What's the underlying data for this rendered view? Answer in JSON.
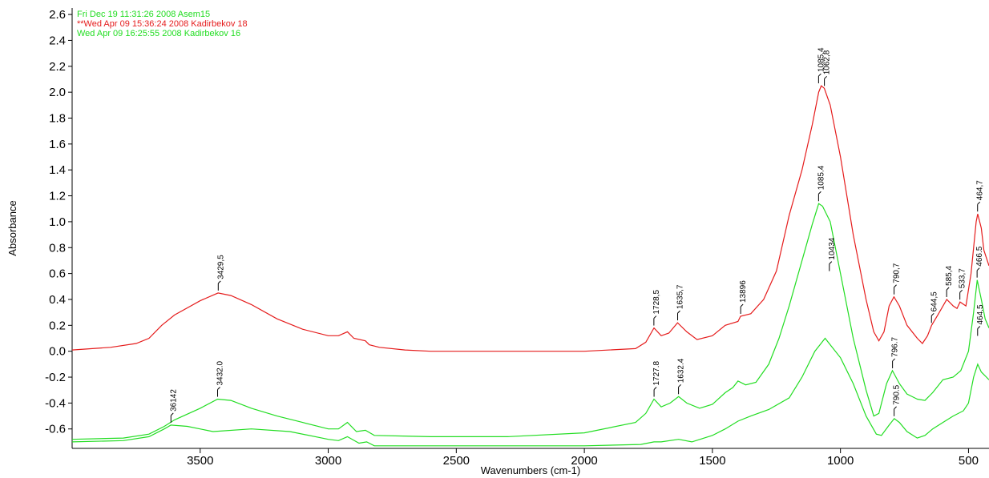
{
  "chart_data": {
    "type": "line",
    "xlabel": "Wavenumbers (cm-1)",
    "ylabel": "Absorbance",
    "xlim": [
      4000,
      420
    ],
    "x_reversed": true,
    "ylim": [
      -0.75,
      2.65
    ],
    "x_ticks": [
      3500,
      3000,
      2500,
      2000,
      1500,
      1000,
      500
    ],
    "x_tick_labels": [
      "3500",
      "3000",
      "2500",
      "2000",
      "1500",
      "1000",
      "500"
    ],
    "y_ticks": [
      2.6,
      2.4,
      2.2,
      2.0,
      1.8,
      1.6,
      1.4,
      1.2,
      1.0,
      0.8,
      0.6,
      0.4,
      0.2,
      0.0,
      -0.2,
      -0.4,
      -0.6
    ],
    "y_tick_labels": [
      "2.6",
      "2.4",
      "2.2",
      "2.0",
      "1.8",
      "1.6",
      "1.4",
      "1.2",
      "1.0",
      "0.8",
      "0.6",
      "0.4",
      "0.2",
      "0.0",
      "-0.2",
      "-0.4",
      "-0.6"
    ],
    "grid": false,
    "legend_position": "top-left",
    "series": [
      {
        "name": "Fri Dec 19 11:31:26 2008 Asem15",
        "color": "#22dd22",
        "points": [
          [
            4000,
            -0.7
          ],
          [
            3800,
            -0.69
          ],
          [
            3700,
            -0.66
          ],
          [
            3640,
            -0.6
          ],
          [
            3614,
            -0.57
          ],
          [
            3550,
            -0.58
          ],
          [
            3450,
            -0.62
          ],
          [
            3300,
            -0.6
          ],
          [
            3150,
            -0.62
          ],
          [
            3000,
            -0.68
          ],
          [
            2960,
            -0.69
          ],
          [
            2925,
            -0.66
          ],
          [
            2880,
            -0.71
          ],
          [
            2850,
            -0.7
          ],
          [
            2820,
            -0.73
          ],
          [
            2600,
            -0.73
          ],
          [
            2000,
            -0.73
          ],
          [
            1780,
            -0.72
          ],
          [
            1728,
            -0.7
          ],
          [
            1700,
            -0.7
          ],
          [
            1632,
            -0.68
          ],
          [
            1580,
            -0.7
          ],
          [
            1500,
            -0.65
          ],
          [
            1450,
            -0.6
          ],
          [
            1400,
            -0.54
          ],
          [
            1350,
            -0.5
          ],
          [
            1280,
            -0.45
          ],
          [
            1200,
            -0.36
          ],
          [
            1150,
            -0.2
          ],
          [
            1100,
            0.0
          ],
          [
            1080,
            0.05
          ],
          [
            1060,
            0.1
          ],
          [
            1040,
            0.05
          ],
          [
            1000,
            -0.05
          ],
          [
            950,
            -0.25
          ],
          [
            900,
            -0.5
          ],
          [
            860,
            -0.64
          ],
          [
            840,
            -0.65
          ],
          [
            810,
            -0.57
          ],
          [
            790,
            -0.52
          ],
          [
            770,
            -0.55
          ],
          [
            740,
            -0.62
          ],
          [
            700,
            -0.67
          ],
          [
            670,
            -0.65
          ],
          [
            640,
            -0.6
          ],
          [
            600,
            -0.55
          ],
          [
            560,
            -0.5
          ],
          [
            520,
            -0.46
          ],
          [
            500,
            -0.4
          ],
          [
            480,
            -0.2
          ],
          [
            464,
            -0.1
          ],
          [
            450,
            -0.16
          ],
          [
            430,
            -0.2
          ],
          [
            420,
            -0.22
          ]
        ]
      },
      {
        "name": "**Wed Apr 09 15:36:24 2008 Kadirbekov 18",
        "color": "#e51c1c",
        "points": [
          [
            4000,
            0.01
          ],
          [
            3850,
            0.03
          ],
          [
            3750,
            0.06
          ],
          [
            3700,
            0.1
          ],
          [
            3650,
            0.2
          ],
          [
            3600,
            0.28
          ],
          [
            3500,
            0.39
          ],
          [
            3430,
            0.45
          ],
          [
            3380,
            0.43
          ],
          [
            3300,
            0.36
          ],
          [
            3200,
            0.25
          ],
          [
            3100,
            0.17
          ],
          [
            3000,
            0.12
          ],
          [
            2960,
            0.12
          ],
          [
            2925,
            0.15
          ],
          [
            2900,
            0.1
          ],
          [
            2855,
            0.08
          ],
          [
            2840,
            0.05
          ],
          [
            2800,
            0.03
          ],
          [
            2700,
            0.01
          ],
          [
            2600,
            0.0
          ],
          [
            2000,
            0.0
          ],
          [
            1800,
            0.02
          ],
          [
            1760,
            0.07
          ],
          [
            1728,
            0.18
          ],
          [
            1700,
            0.12
          ],
          [
            1670,
            0.14
          ],
          [
            1636,
            0.22
          ],
          [
            1600,
            0.15
          ],
          [
            1560,
            0.09
          ],
          [
            1500,
            0.12
          ],
          [
            1450,
            0.2
          ],
          [
            1400,
            0.23
          ],
          [
            1390,
            0.27
          ],
          [
            1350,
            0.29
          ],
          [
            1300,
            0.4
          ],
          [
            1250,
            0.62
          ],
          [
            1200,
            1.05
          ],
          [
            1150,
            1.4
          ],
          [
            1110,
            1.75
          ],
          [
            1085,
            2.0
          ],
          [
            1075,
            2.05
          ],
          [
            1063,
            2.03
          ],
          [
            1040,
            1.9
          ],
          [
            1000,
            1.5
          ],
          [
            950,
            0.9
          ],
          [
            900,
            0.4
          ],
          [
            870,
            0.15
          ],
          [
            850,
            0.08
          ],
          [
            830,
            0.15
          ],
          [
            810,
            0.35
          ],
          [
            791,
            0.42
          ],
          [
            770,
            0.35
          ],
          [
            740,
            0.2
          ],
          [
            700,
            0.1
          ],
          [
            680,
            0.06
          ],
          [
            660,
            0.12
          ],
          [
            644,
            0.2
          ],
          [
            620,
            0.28
          ],
          [
            585,
            0.4
          ],
          [
            560,
            0.35
          ],
          [
            545,
            0.33
          ],
          [
            533,
            0.38
          ],
          [
            510,
            0.35
          ],
          [
            490,
            0.6
          ],
          [
            470,
            1.0
          ],
          [
            464,
            1.06
          ],
          [
            450,
            0.95
          ],
          [
            440,
            0.78
          ],
          [
            420,
            0.66
          ]
        ]
      },
      {
        "name": "Wed Apr 09 16:25:55 2008 Kadirbekov 16",
        "color": "#22dd22",
        "points": [
          [
            4000,
            -0.68
          ],
          [
            3800,
            -0.67
          ],
          [
            3700,
            -0.64
          ],
          [
            3640,
            -0.58
          ],
          [
            3600,
            -0.53
          ],
          [
            3500,
            -0.44
          ],
          [
            3432,
            -0.37
          ],
          [
            3380,
            -0.38
          ],
          [
            3300,
            -0.44
          ],
          [
            3200,
            -0.5
          ],
          [
            3100,
            -0.55
          ],
          [
            3000,
            -0.6
          ],
          [
            2960,
            -0.6
          ],
          [
            2925,
            -0.55
          ],
          [
            2890,
            -0.62
          ],
          [
            2855,
            -0.61
          ],
          [
            2820,
            -0.65
          ],
          [
            2600,
            -0.66
          ],
          [
            2300,
            -0.66
          ],
          [
            2000,
            -0.63
          ],
          [
            1800,
            -0.55
          ],
          [
            1760,
            -0.48
          ],
          [
            1728,
            -0.37
          ],
          [
            1700,
            -0.43
          ],
          [
            1665,
            -0.4
          ],
          [
            1632,
            -0.35
          ],
          [
            1600,
            -0.4
          ],
          [
            1550,
            -0.44
          ],
          [
            1500,
            -0.41
          ],
          [
            1450,
            -0.32
          ],
          [
            1420,
            -0.28
          ],
          [
            1400,
            -0.23
          ],
          [
            1370,
            -0.26
          ],
          [
            1330,
            -0.24
          ],
          [
            1280,
            -0.1
          ],
          [
            1240,
            0.1
          ],
          [
            1200,
            0.35
          ],
          [
            1150,
            0.7
          ],
          [
            1110,
            0.98
          ],
          [
            1085,
            1.14
          ],
          [
            1070,
            1.12
          ],
          [
            1040,
            1.0
          ],
          [
            1000,
            0.6
          ],
          [
            950,
            0.1
          ],
          [
            900,
            -0.3
          ],
          [
            870,
            -0.5
          ],
          [
            850,
            -0.48
          ],
          [
            820,
            -0.25
          ],
          [
            797,
            -0.15
          ],
          [
            770,
            -0.25
          ],
          [
            740,
            -0.33
          ],
          [
            700,
            -0.37
          ],
          [
            670,
            -0.38
          ],
          [
            640,
            -0.32
          ],
          [
            600,
            -0.22
          ],
          [
            560,
            -0.2
          ],
          [
            530,
            -0.15
          ],
          [
            500,
            0.0
          ],
          [
            480,
            0.3
          ],
          [
            466,
            0.55
          ],
          [
            450,
            0.4
          ],
          [
            435,
            0.25
          ],
          [
            420,
            0.18
          ]
        ]
      }
    ],
    "peak_labels": [
      {
        "text": "3429,5",
        "x": 3429.5,
        "y": 0.45
      },
      {
        "text": "1728,5",
        "x": 1728.5,
        "y": 0.18
      },
      {
        "text": "1635,7",
        "x": 1635.7,
        "y": 0.22
      },
      {
        "text": "13896",
        "x": 1389.6,
        "y": 0.27
      },
      {
        "text": "1085,4",
        "x": 1085.4,
        "y": 2.05
      },
      {
        "text": "1062,8",
        "x": 1062.8,
        "y": 2.03
      },
      {
        "text": "790,7",
        "x": 790.7,
        "y": 0.42
      },
      {
        "text": "644,5",
        "x": 644.5,
        "y": 0.2
      },
      {
        "text": "585,4",
        "x": 585.4,
        "y": 0.4
      },
      {
        "text": "533,7",
        "x": 533.7,
        "y": 0.38
      },
      {
        "text": "464,7",
        "x": 464.7,
        "y": 1.06
      },
      {
        "text": "1085.4",
        "x": 1085.4,
        "y": 1.14
      },
      {
        "text": "10434",
        "x": 1043.4,
        "y": 0.6
      },
      {
        "text": "796.7",
        "x": 796.7,
        "y": -0.15
      },
      {
        "text": "466.5",
        "x": 466.5,
        "y": 0.55
      },
      {
        "text": "464.5",
        "x": 464.5,
        "y": 0.1
      },
      {
        "text": "3432.0",
        "x": 3432.0,
        "y": -0.37
      },
      {
        "text": "36142",
        "x": 3614.2,
        "y": -0.57
      },
      {
        "text": "1727.8",
        "x": 1727.8,
        "y": -0.37
      },
      {
        "text": "1632.4",
        "x": 1632.4,
        "y": -0.35
      },
      {
        "text": "790.5",
        "x": 790.5,
        "y": -0.52
      }
    ]
  }
}
